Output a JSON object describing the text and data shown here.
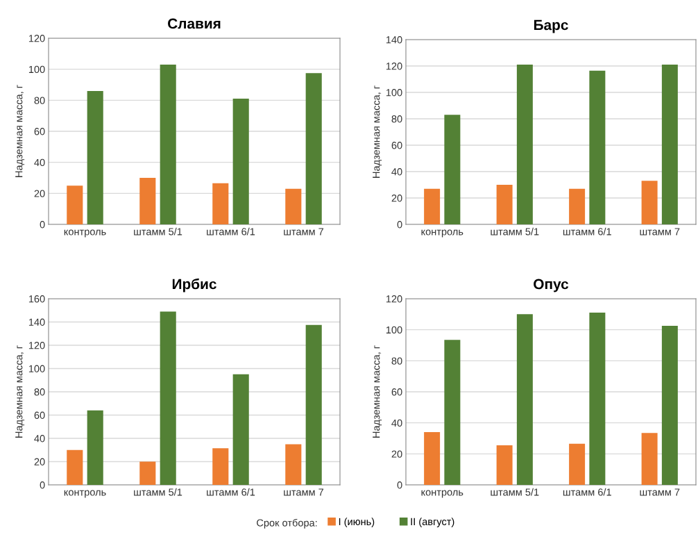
{
  "chart_data": [
    {
      "type": "bar",
      "title": "Славия",
      "ylabel": "Надземная масса, г",
      "categories": [
        "контроль",
        "штамм 5/1",
        "штамм 6/1",
        "штамм 7"
      ],
      "ylim": [
        0,
        120
      ],
      "yticks": [
        0,
        20,
        40,
        60,
        80,
        100,
        120
      ],
      "grid": "y",
      "legend": "bottom",
      "legend_title": "Срок отбора:",
      "series": [
        {
          "name": "I (июнь)",
          "color": "#ed7d31",
          "values": [
            25,
            30,
            26.5,
            23
          ]
        },
        {
          "name": "II (август)",
          "color": "#538135",
          "values": [
            86,
            103,
            81,
            97.5
          ]
        }
      ]
    },
    {
      "type": "bar",
      "title": "Барс",
      "ylabel": "Надземная масса, г",
      "categories": [
        "контроль",
        "штамм 5/1",
        "штамм 6/1",
        "штамм 7"
      ],
      "ylim": [
        0,
        140
      ],
      "yticks": [
        0,
        20,
        40,
        60,
        80,
        100,
        120,
        140
      ],
      "grid": "y",
      "series": [
        {
          "color": "#ed7d31",
          "values": [
            27,
            30,
            27,
            33
          ]
        },
        {
          "color": "#538135",
          "values": [
            83,
            121,
            116.5,
            121
          ]
        }
      ]
    },
    {
      "type": "bar",
      "title": "Ирбис",
      "ylabel": "Надземная масса, г",
      "categories": [
        "контроль",
        "штамм 5/1",
        "штамм 6/1",
        "штамм 7"
      ],
      "ylim": [
        0,
        160
      ],
      "yticks": [
        0,
        20,
        40,
        60,
        80,
        100,
        120,
        140,
        160
      ],
      "grid": "y",
      "series": [
        {
          "color": "#ed7d31",
          "values": [
            30,
            20,
            31.5,
            35
          ]
        },
        {
          "color": "#538135",
          "values": [
            64,
            149,
            95,
            137.5
          ]
        }
      ]
    },
    {
      "type": "bar",
      "title": "Опус",
      "ylabel": "Надземная масса, г",
      "categories": [
        "контроль",
        "штамм 5/1",
        "штамм 6/1",
        "штамм 7"
      ],
      "ylim": [
        0,
        120
      ],
      "yticks": [
        0,
        20,
        40,
        60,
        80,
        100,
        120
      ],
      "grid": "y",
      "series": [
        {
          "color": "#ed7d31",
          "values": [
            34,
            25.5,
            26.5,
            33.5
          ]
        },
        {
          "color": "#538135",
          "values": [
            93.5,
            110,
            111,
            102.5
          ]
        }
      ]
    }
  ]
}
